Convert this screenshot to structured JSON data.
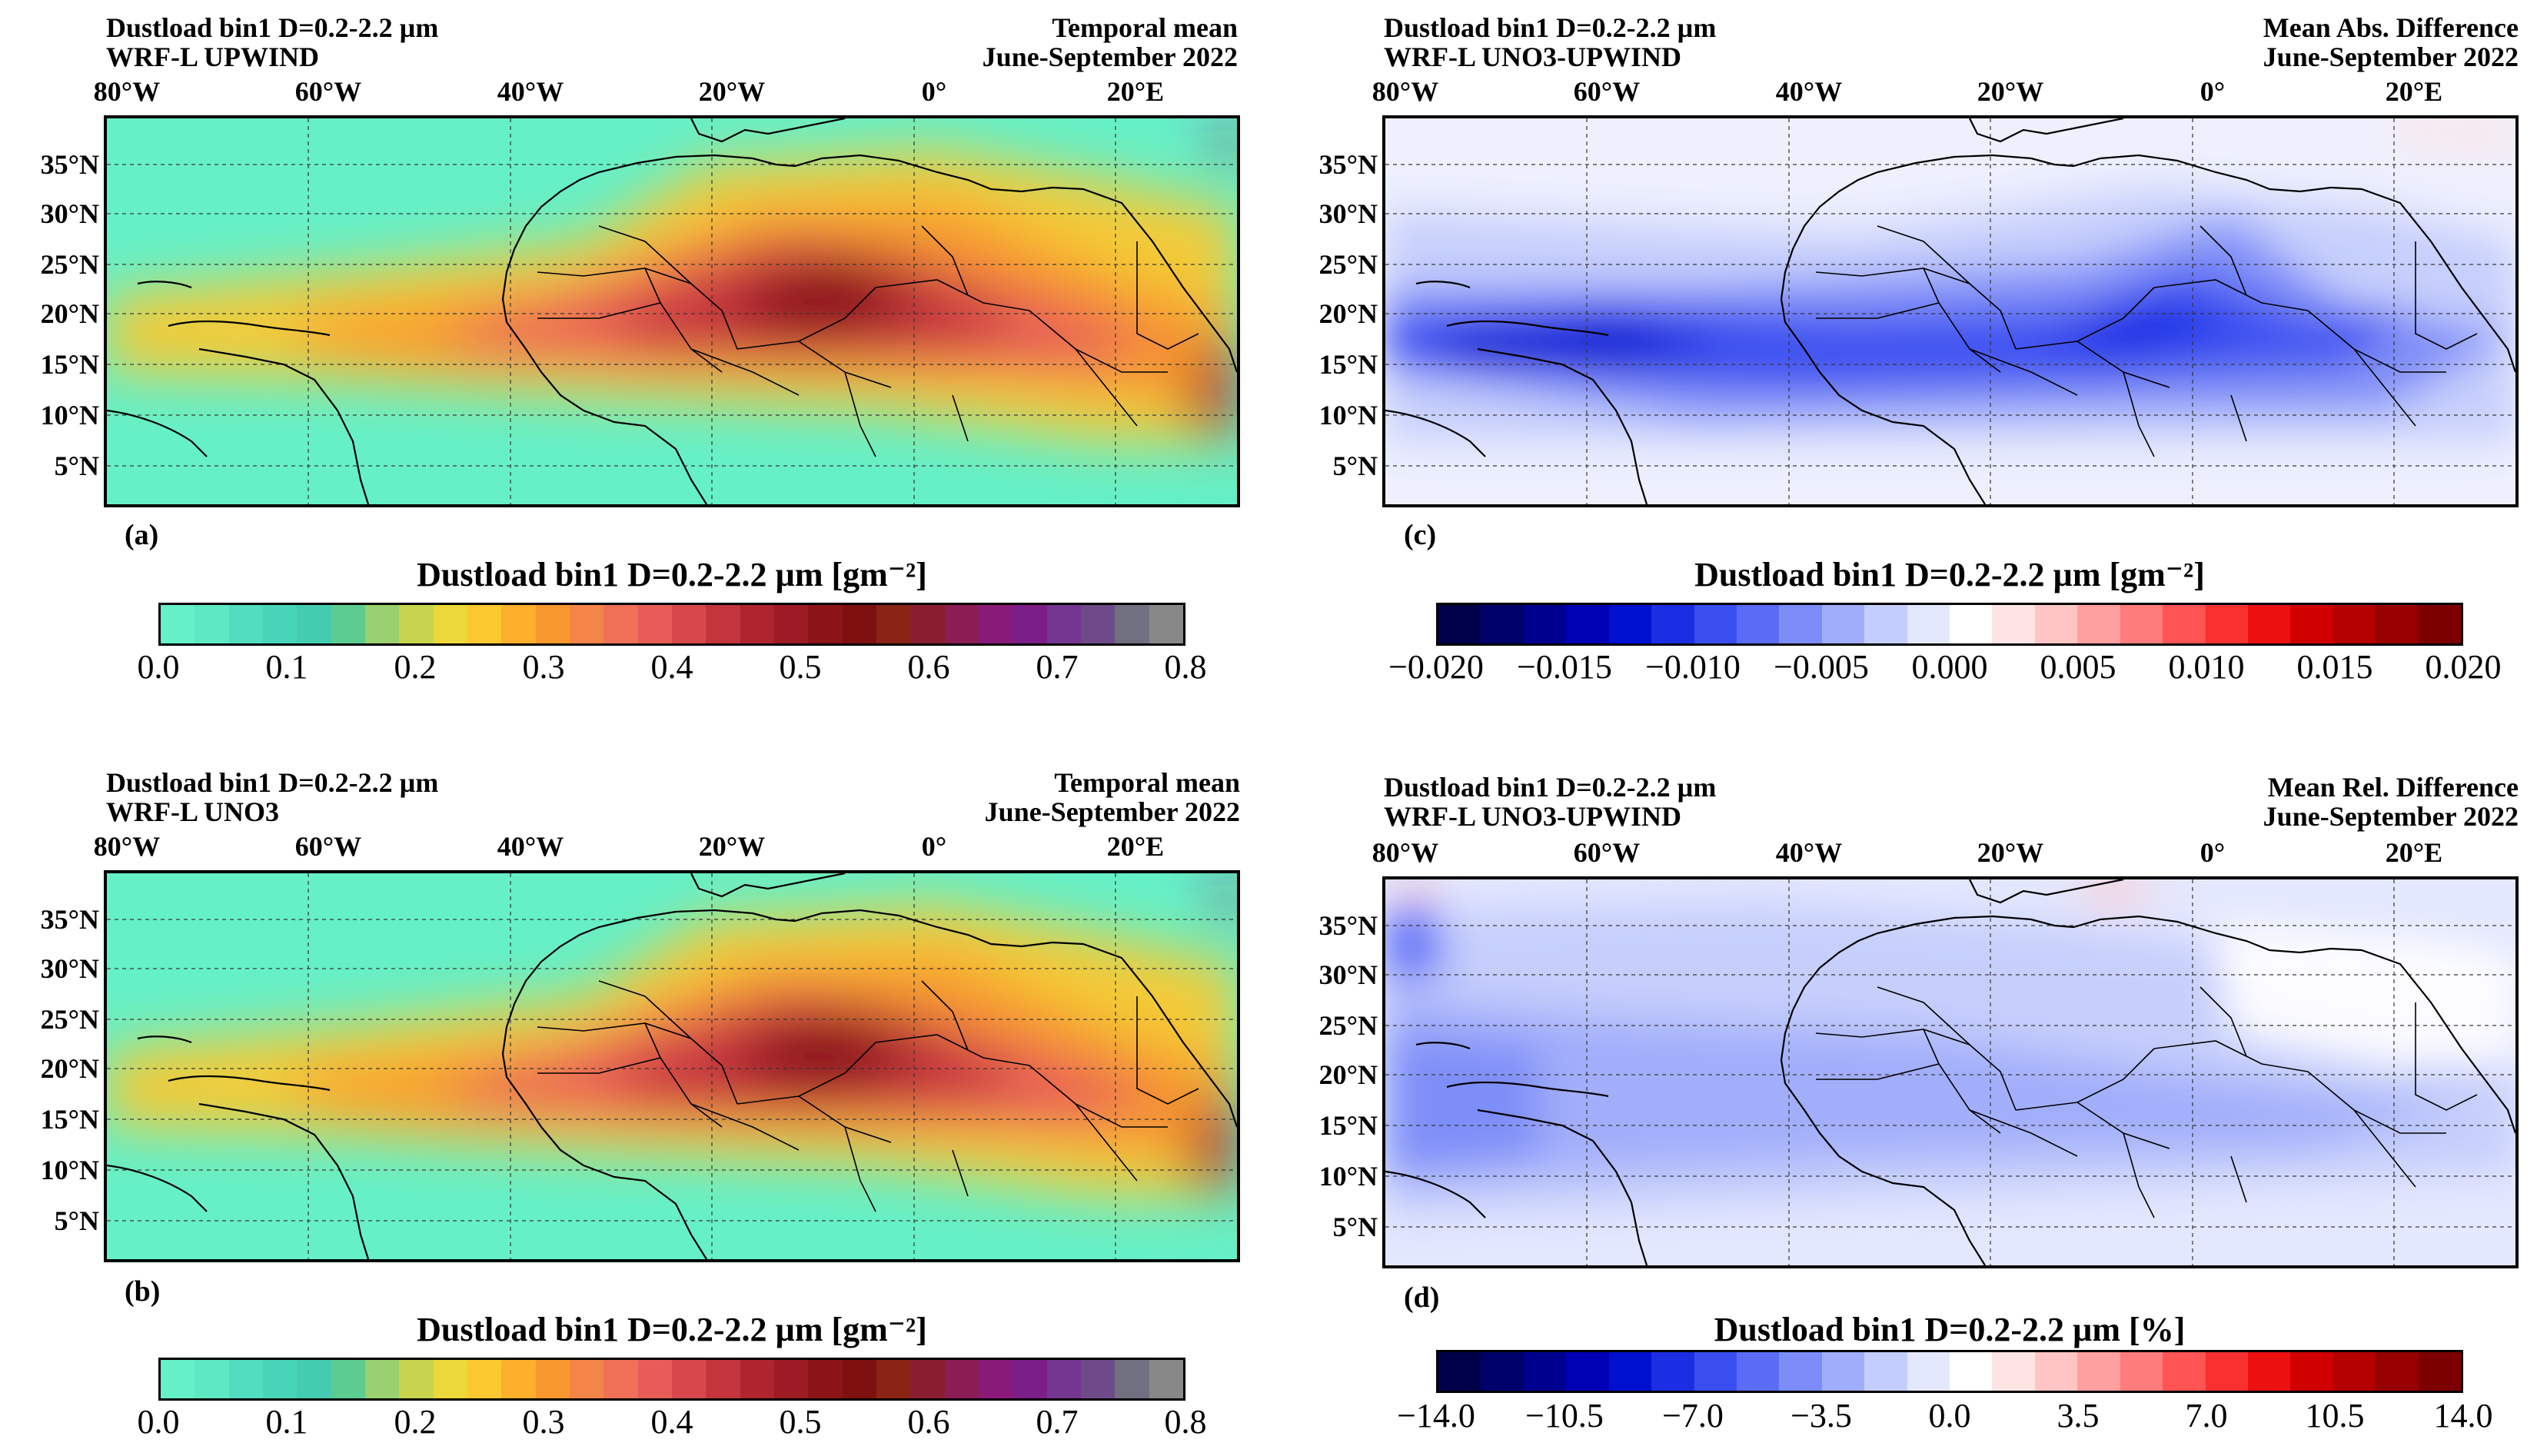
{
  "panels": {
    "a": {
      "title_line1": "Dustload bin1 D=0.2-2.2 µm",
      "title_line2": "WRF-L UPWIND",
      "right_line1": "Temporal mean",
      "right_line2": "June-September 2022",
      "label": "(a)"
    },
    "b": {
      "title_line1": "Dustload bin1 D=0.2-2.2 µm",
      "title_line2": "WRF-L UNO3",
      "right_line1": "Temporal mean",
      "right_line2": "June-September 2022",
      "label": "(b)"
    },
    "c": {
      "title_line1": "Dustload bin1 D=0.2-2.2 µm",
      "title_line2": "WRF-L UNO3-UPWIND",
      "right_line1": "Mean Abs. Difference",
      "right_line2": "June-September 2022",
      "label": "(c)"
    },
    "d": {
      "title_line1": "Dustload bin1 D=0.2-2.2 µm",
      "title_line2": "WRF-L UNO3-UPWIND",
      "right_line1": "Mean Rel. Difference",
      "right_line2": "June-September 2022",
      "label": "(d)"
    }
  },
  "lon_labels": [
    "80°W",
    "60°W",
    "40°W",
    "20°W",
    "0°",
    "20°E"
  ],
  "lat_labels": [
    "35°N",
    "30°N",
    "25°N",
    "20°N",
    "15°N",
    "10°N",
    "5°N"
  ],
  "colorbars": {
    "load": {
      "title": "Dustload bin1 D=0.2-2.2 µm [gm⁻²]",
      "ticks": [
        "0.0",
        "0.1",
        "0.2",
        "0.3",
        "0.4",
        "0.5",
        "0.6",
        "0.7",
        "0.8"
      ],
      "colors": [
        "#66f0c8",
        "#5ee8c4",
        "#52dcc0",
        "#48d4b8",
        "#44ccb0",
        "#5ccc90",
        "#9ad070",
        "#c8d44e",
        "#ecd838",
        "#fcc830",
        "#fcb02c",
        "#f8982e",
        "#f48448",
        "#f07058",
        "#e85c58",
        "#d8484a",
        "#c4343c",
        "#b02430",
        "#9c1a24",
        "#8c1418",
        "#7e1010",
        "#8a2414",
        "#8a1e30",
        "#8c1c54",
        "#8a1a78",
        "#7c1e88",
        "#743690",
        "#6e4a88",
        "#707080",
        "#888888"
      ]
    },
    "abs": {
      "title": "Dustload bin1 D=0.2-2.2 µm [gm⁻²]",
      "ticks": [
        "−0.020",
        "−0.015",
        "−0.010",
        "−0.005",
        "0.000",
        "0.005",
        "0.010",
        "0.015",
        "0.020"
      ],
      "colors": [
        "#00004a",
        "#00006a",
        "#00008e",
        "#0000b4",
        "#0010d0",
        "#1c2ee4",
        "#3a4ef0",
        "#5a6cf6",
        "#7c8cf8",
        "#a0adfa",
        "#c4cefc",
        "#e4e8fe",
        "#ffffff",
        "#ffe4e4",
        "#ffc4c4",
        "#ffa0a0",
        "#ff7c7c",
        "#ff5454",
        "#f83030",
        "#ec1010",
        "#d00000",
        "#b40000",
        "#980000",
        "#7c0000"
      ]
    },
    "rel": {
      "title": "Dustload bin1 D=0.2-2.2 µm [%]",
      "ticks": [
        "−14.0",
        "−10.5",
        "−7.0",
        "−3.5",
        "0.0",
        "3.5",
        "7.0",
        "10.5",
        "14.0"
      ],
      "colors": [
        "#00004a",
        "#00006a",
        "#00008e",
        "#0000b4",
        "#0010d0",
        "#1c2ee4",
        "#3a4ef0",
        "#5a6cf6",
        "#7c8cf8",
        "#a0adfa",
        "#c4cefc",
        "#e4e8fe",
        "#ffffff",
        "#ffe4e4",
        "#ffc4c4",
        "#ffa0a0",
        "#ff7c7c",
        "#ff5454",
        "#f83030",
        "#ec1010",
        "#d00000",
        "#b40000",
        "#980000",
        "#7c0000"
      ]
    }
  },
  "colors": {
    "ocean_low": "#66f0c8",
    "load_mid": "#fcc830",
    "load_high": "#9c1a24",
    "diff_neg": "#2030e0",
    "diff_pos": "#f03030"
  }
}
